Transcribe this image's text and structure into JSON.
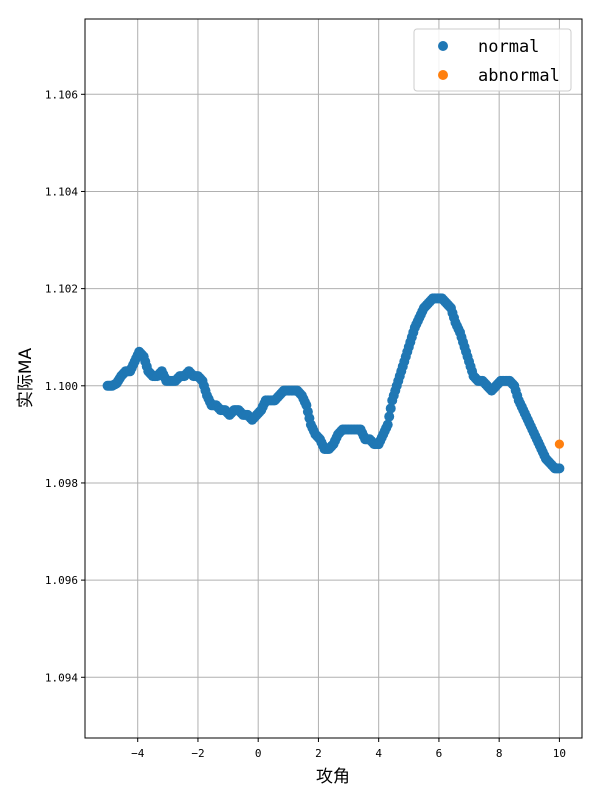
{
  "chart_data": {
    "type": "scatter",
    "title": "",
    "xlabel": "攻角",
    "ylabel": "实际MA",
    "xlim": [
      -5.75,
      10.75
    ],
    "ylim": [
      1.09275,
      1.10755
    ],
    "x_ticks": [
      -4,
      -2,
      0,
      2,
      4,
      6,
      8,
      10
    ],
    "x_tick_labels": [
      "−4",
      "−2",
      "0",
      "2",
      "4",
      "6",
      "8",
      "10"
    ],
    "y_ticks": [
      1.094,
      1.096,
      1.098,
      1.1,
      1.102,
      1.104,
      1.106
    ],
    "y_tick_labels": [
      "1.094",
      "1.096",
      "1.098",
      "1.100",
      "1.102",
      "1.104",
      "1.106"
    ],
    "grid": true,
    "legend_position": "top-right",
    "series": [
      {
        "name": "normal",
        "color": "#1f77b4",
        "x": [
          -5.0,
          -4.85,
          -4.7,
          -4.55,
          -4.4,
          -4.25,
          -4.1,
          -3.95,
          -3.8,
          -3.65,
          -3.5,
          -3.35,
          -3.2,
          -3.05,
          -2.9,
          -2.75,
          -2.6,
          -2.45,
          -2.3,
          -2.15,
          -2.0,
          -1.85,
          -1.7,
          -1.55,
          -1.4,
          -1.25,
          -1.1,
          -0.95,
          -0.8,
          -0.65,
          -0.5,
          -0.35,
          -0.2,
          -0.05,
          0.1,
          0.25,
          0.4,
          0.55,
          0.7,
          0.85,
          1.0,
          1.15,
          1.3,
          1.45,
          1.6,
          1.75,
          1.9,
          2.05,
          2.2,
          2.35,
          2.5,
          2.65,
          2.8,
          2.95,
          3.1,
          3.25,
          3.4,
          3.55,
          3.7,
          3.85,
          4.0,
          4.15,
          4.3,
          4.45,
          4.6,
          4.75,
          4.9,
          5.05,
          5.2,
          5.35,
          5.5,
          5.65,
          5.8,
          5.95,
          6.1,
          6.25,
          6.4,
          6.55,
          6.7,
          6.85,
          7.0,
          7.15,
          7.3,
          7.45,
          7.6,
          7.75,
          7.9,
          8.05,
          8.2,
          8.35,
          8.5,
          8.65,
          8.8,
          8.95,
          9.1,
          9.25,
          9.4,
          9.55,
          9.7,
          9.85,
          10.0
        ],
        "y": [
          1.1,
          1.1,
          1.10005,
          1.1002,
          1.1003,
          1.1003,
          1.1005,
          1.1007,
          1.1006,
          1.1003,
          1.1002,
          1.1002,
          1.1003,
          1.1001,
          1.1001,
          1.1001,
          1.1002,
          1.1002,
          1.1003,
          1.1002,
          1.1002,
          1.1001,
          1.0998,
          1.0996,
          1.0996,
          1.0995,
          1.0995,
          1.0994,
          1.0995,
          1.0995,
          1.0994,
          1.0994,
          1.0993,
          1.0994,
          1.0995,
          1.0997,
          1.0997,
          1.0997,
          1.0998,
          1.0999,
          1.0999,
          1.0999,
          1.0999,
          1.0998,
          1.0996,
          1.0992,
          1.099,
          1.0989,
          1.0987,
          1.0987,
          1.0988,
          1.099,
          1.0991,
          1.0991,
          1.0991,
          1.0991,
          1.0991,
          1.0989,
          1.0989,
          1.0988,
          1.0988,
          1.099,
          1.0992,
          1.0997,
          1.1,
          1.1003,
          1.1006,
          1.1009,
          1.1012,
          1.1014,
          1.1016,
          1.1017,
          1.1018,
          1.1018,
          1.1018,
          1.1017,
          1.1016,
          1.1013,
          1.1011,
          1.1008,
          1.1005,
          1.1002,
          1.1001,
          1.1001,
          1.1,
          1.0999,
          1.1,
          1.1001,
          1.1001,
          1.1001,
          1.1,
          1.0997,
          1.0995,
          1.0993,
          1.0991,
          1.0989,
          1.0987,
          1.0985,
          1.0984,
          1.0983,
          1.0983
        ]
      },
      {
        "name": "abnormal",
        "color": "#ff7f0e",
        "x": [
          10.0
        ],
        "y": [
          1.0988
        ]
      }
    ]
  }
}
